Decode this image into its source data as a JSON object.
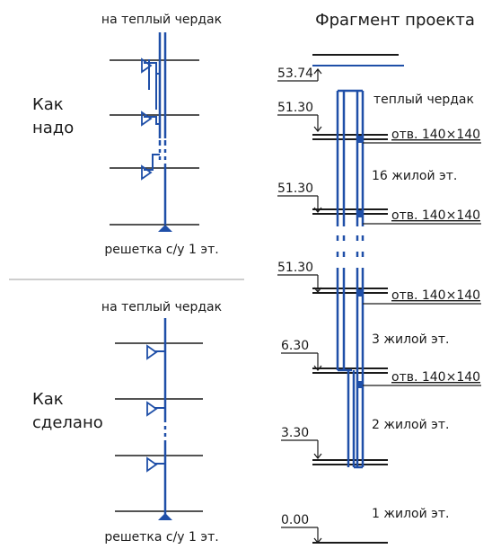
{
  "left": {
    "top_section": {
      "label_line1": "Как",
      "label_line2": "надо",
      "top_caption": "на теплый чердак",
      "bottom_caption": "решетка с/у 1 эт."
    },
    "bottom_section": {
      "label_line1": "Как",
      "label_line2": "сделано",
      "top_caption": "на теплый чердак",
      "bottom_caption": "решетка с/у 1 эт."
    }
  },
  "right": {
    "title": "Фрагмент проекта",
    "elevations": [
      "53.74",
      "51.30",
      "51.30",
      "51.30",
      "6.30",
      "3.30",
      "0.00"
    ],
    "openings": [
      "отв. 140×140",
      "отв. 140×140",
      "отв. 140×140",
      "отв. 140×140"
    ],
    "floor_labels": [
      "теплый чердак",
      "16 жилой эт.",
      "3 жилой эт.",
      "2 жилой эт.",
      "1 жилой эт."
    ]
  },
  "colors": {
    "duct": "#1f4fa8",
    "line": "#1a1a1a",
    "divider": "#b0b0b0"
  }
}
